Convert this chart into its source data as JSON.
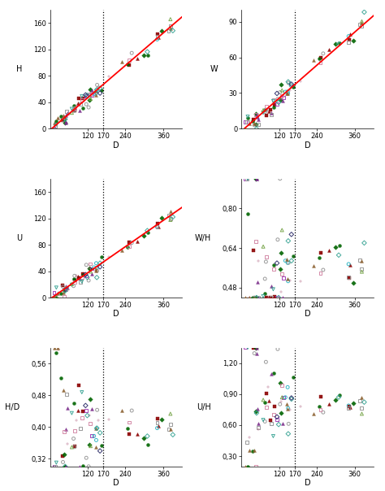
{
  "fig_width": 4.74,
  "fig_height": 6.04,
  "dpi": 100,
  "bg_color": "#ffffff",
  "vline_x": 170,
  "plots": [
    {
      "row": 0,
      "col": 0,
      "ylabel": "H",
      "xlabel": "D",
      "xlim": [
        0,
        420
      ],
      "ylim": [
        0,
        180
      ],
      "xticks": [
        120,
        170,
        240,
        360
      ],
      "yticks": [
        0,
        40,
        80,
        120,
        160
      ],
      "has_reg": true,
      "reg_slope": 0.408,
      "reg_intercept": -2.0
    },
    {
      "row": 0,
      "col": 1,
      "ylabel": "W",
      "xlabel": "D",
      "xlim": [
        0,
        420
      ],
      "ylim": [
        0,
        100
      ],
      "xticks": [
        120,
        170,
        240,
        360
      ],
      "yticks": [
        0,
        30,
        60,
        90
      ],
      "has_reg": true,
      "reg_slope": 0.231,
      "reg_intercept": -2.0
    },
    {
      "row": 1,
      "col": 0,
      "ylabel": "U",
      "xlabel": "D",
      "xlim": [
        0,
        420
      ],
      "ylim": [
        0,
        180
      ],
      "xticks": [
        120,
        170,
        240,
        360
      ],
      "yticks": [
        0,
        40,
        80,
        120,
        160
      ],
      "has_reg": true,
      "reg_slope": 0.33,
      "reg_intercept": -2.0
    },
    {
      "row": 1,
      "col": 1,
      "ylabel": "W/H",
      "xlabel": "D",
      "xlim": [
        0,
        420
      ],
      "ylim": [
        0.44,
        0.92
      ],
      "xticks": [
        120,
        170,
        240,
        360
      ],
      "yticks": [
        0.48,
        0.64,
        0.8
      ],
      "has_reg": false
    },
    {
      "row": 2,
      "col": 0,
      "ylabel": "H/D",
      "xlabel": "D",
      "xlim": [
        0,
        420
      ],
      "ylim": [
        0.3,
        0.6
      ],
      "xticks": [
        120,
        170,
        240,
        360
      ],
      "yticks": [
        0.32,
        0.4,
        0.48,
        0.56
      ],
      "has_reg": false
    },
    {
      "row": 2,
      "col": 1,
      "ylabel": "U/H",
      "xlabel": "D",
      "xlim": [
        0,
        420
      ],
      "ylim": [
        0.2,
        1.35
      ],
      "xticks": [
        120,
        170,
        240,
        360
      ],
      "yticks": [
        0.3,
        0.6,
        0.9,
        1.2
      ],
      "has_reg": false
    }
  ],
  "groups": [
    {
      "color": "#8B0000",
      "marker": "s",
      "filled": true
    },
    {
      "color": "#8B0000",
      "marker": "^",
      "filled": true
    },
    {
      "color": "#006400",
      "marker": "o",
      "filled": true
    },
    {
      "color": "#006400",
      "marker": "D",
      "filled": true
    },
    {
      "color": "#7B2D8B",
      "marker": "^",
      "filled": true
    },
    {
      "color": "#9B30B0",
      "marker": "s",
      "filled": false
    },
    {
      "color": "#20B0C0",
      "marker": "o",
      "filled": false
    },
    {
      "color": "#909090",
      "marker": "o",
      "filled": false
    },
    {
      "color": "#909090",
      "marker": "s",
      "filled": false
    },
    {
      "color": "#D080A0",
      "marker": "s",
      "filled": false
    },
    {
      "color": "#B06080",
      "marker": "+",
      "filled": true
    },
    {
      "color": "#8B6030",
      "marker": "^",
      "filled": true
    },
    {
      "color": "#30A090",
      "marker": "v",
      "filled": false
    },
    {
      "color": "#30A090",
      "marker": "D",
      "filled": false
    },
    {
      "color": "#70A040",
      "marker": "^",
      "filled": false
    },
    {
      "color": "#20206090",
      "marker": "D",
      "filled": false
    }
  ]
}
